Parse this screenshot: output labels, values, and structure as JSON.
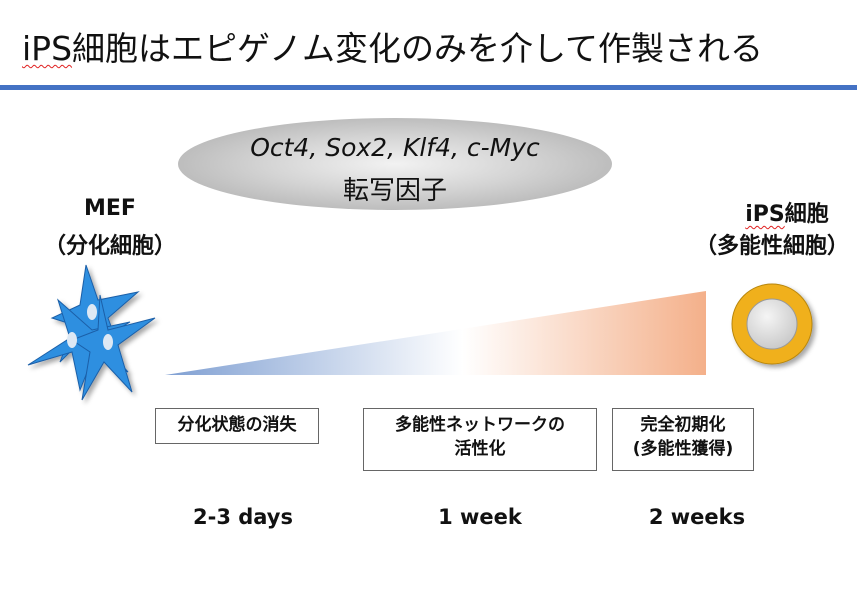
{
  "title": {
    "prefix": "iPS",
    "rest": "細胞はエピゲノム変化のみを介して作製される"
  },
  "factors": {
    "genes": "Oct4, Sox2, Klf4, c-Myc",
    "label": "転写因子"
  },
  "start_cell": {
    "name": "MEF",
    "desc": "（分化細胞）"
  },
  "end_cell": {
    "name_prefix": "iPS",
    "name_rest": "細胞",
    "desc": "（多能性細胞）"
  },
  "stages": [
    {
      "text": "分化状態の消失",
      "time": "2-3 days"
    },
    {
      "text": "多能性ネットワークの活性化",
      "time": "1 week"
    },
    {
      "text": "完全初期化 (多能性獲得)",
      "time": "2 weeks"
    }
  ],
  "colors": {
    "accent": "#4472c4",
    "cell_blue": "#2f8fe0",
    "ips_ring": "#f0b01e",
    "gradient_start": "#7f9fd2",
    "gradient_end": "#f4b08a"
  },
  "icons": {
    "mef": "fibroblast-cells-icon",
    "ips": "ips-cell-icon"
  }
}
